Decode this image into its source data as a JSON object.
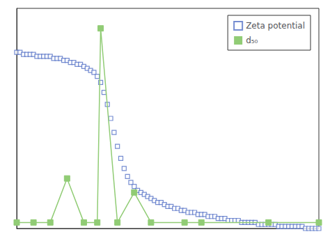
{
  "chart_data": {
    "type": "line",
    "xlim": [
      2.0,
      11.0
    ],
    "ylim": [
      0,
      110
    ],
    "xticks": [],
    "yticks": [],
    "tick_labels": false,
    "grid": false,
    "legend": "upper right",
    "series": [
      {
        "name": "Zeta potential",
        "type": "scatter",
        "marker": "square_open",
        "x": [
          2.0,
          2.1,
          2.2,
          2.3,
          2.4,
          2.5,
          2.6,
          2.7,
          2.8,
          2.9,
          3.0,
          3.1,
          3.2,
          3.3,
          3.4,
          3.5,
          3.6,
          3.7,
          3.8,
          3.9,
          4.0,
          4.1,
          4.2,
          4.3,
          4.4,
          4.5,
          4.6,
          4.7,
          4.8,
          4.9,
          5.0,
          5.1,
          5.2,
          5.3,
          5.4,
          5.5,
          5.6,
          5.7,
          5.8,
          5.9,
          6.0,
          6.1,
          6.2,
          6.3,
          6.4,
          6.5,
          6.6,
          6.7,
          6.8,
          6.9,
          7.0,
          7.1,
          7.2,
          7.3,
          7.4,
          7.5,
          7.6,
          7.7,
          7.8,
          7.9,
          8.0,
          8.1,
          8.2,
          8.3,
          8.4,
          8.5,
          8.6,
          8.7,
          8.8,
          8.9,
          9.0,
          9.1,
          9.2,
          9.3,
          9.4,
          9.5,
          9.6,
          9.7,
          9.8,
          9.9,
          10.0,
          10.1,
          10.2,
          10.3,
          10.4,
          10.5,
          10.6,
          10.7,
          10.8,
          10.9,
          11.0
        ],
        "values": [
          88,
          88,
          87,
          87,
          87,
          87,
          86,
          86,
          86,
          86,
          86,
          85,
          85,
          85,
          84,
          84,
          83,
          83,
          82,
          82,
          81,
          80,
          79,
          78,
          76,
          73,
          68,
          62,
          55,
          48,
          41,
          35,
          30,
          26,
          23,
          21,
          19,
          18,
          17,
          16,
          15,
          14,
          13,
          13,
          12,
          11,
          11,
          10,
          10,
          9,
          9,
          8,
          8,
          8,
          7,
          7,
          7,
          6,
          6,
          6,
          5,
          5,
          5,
          4,
          4,
          4,
          4,
          3,
          3,
          3,
          3,
          3,
          2,
          2,
          2,
          2,
          2,
          2,
          1,
          1,
          1,
          1,
          1,
          1,
          1,
          1,
          0,
          0,
          0,
          0,
          0
        ]
      },
      {
        "name": "d₅₀",
        "type": "line",
        "marker": "square",
        "line_style": "solid",
        "x": [
          2.0,
          2.5,
          3.0,
          3.5,
          4.0,
          4.4,
          4.5,
          5.0,
          5.5,
          6.0,
          7.0,
          7.5,
          9.5,
          11.0
        ],
        "values": [
          3,
          3,
          3,
          25,
          3,
          3,
          100,
          3,
          18,
          3,
          3,
          3,
          3,
          3
        ]
      }
    ]
  }
}
